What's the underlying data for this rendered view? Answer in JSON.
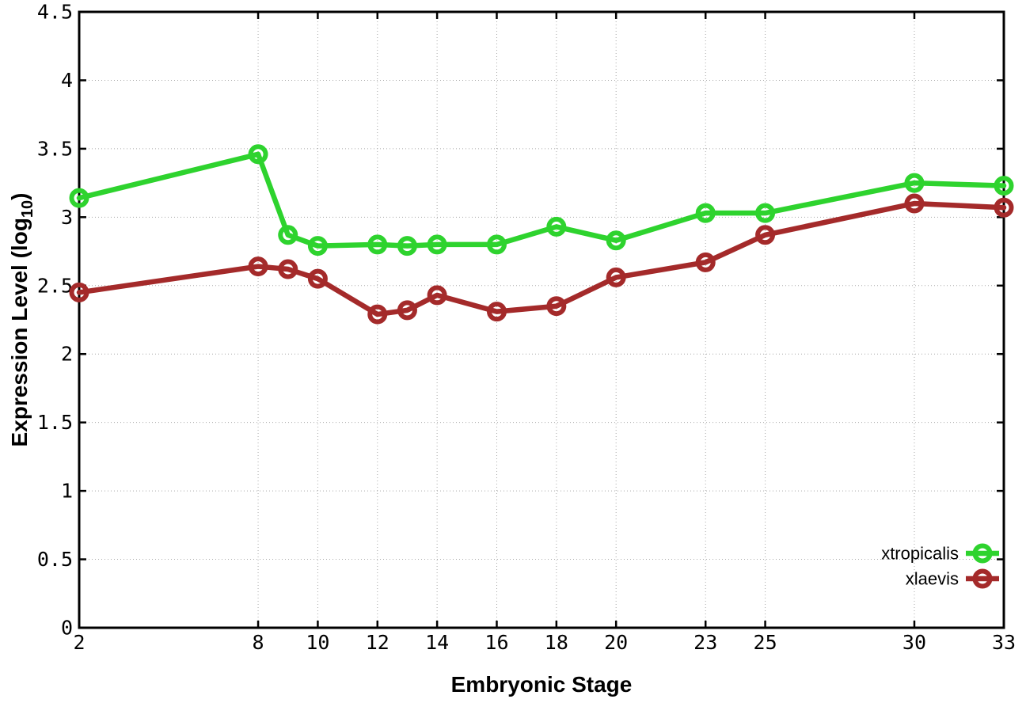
{
  "figure": {
    "background_color": "#ffffff",
    "axis_color": "#000000",
    "grid_color": "#a8a8a8"
  },
  "chart_data": {
    "type": "line",
    "title": "",
    "xlabel": "Embryonic Stage",
    "ylabel_plain": "Expression Level (log10)",
    "ylabel_parts": [
      "Expression Level (log",
      "10",
      ")"
    ],
    "x": [
      2,
      8,
      9,
      10,
      12,
      13,
      14,
      16,
      18,
      20,
      23,
      25,
      30,
      33
    ],
    "xlim": [
      2,
      33
    ],
    "ylim": [
      0,
      4.5
    ],
    "xticks": {
      "values": [
        2,
        8,
        10,
        12,
        14,
        16,
        18,
        20,
        23,
        25,
        30,
        33
      ],
      "labels": [
        "2",
        "8",
        "10",
        "12",
        "14",
        "16",
        "18",
        "20",
        "23",
        "25",
        "30",
        "33"
      ]
    },
    "yticks": {
      "values": [
        0,
        0.5,
        1,
        1.5,
        2,
        2.5,
        3,
        3.5,
        4,
        4.5
      ],
      "labels": [
        "0",
        "0.5",
        "1",
        "1.5",
        "2",
        "2.5",
        "3",
        "3.5",
        "4",
        "4.5"
      ]
    },
    "grid": true,
    "legend_position": "bottom-right",
    "series": [
      {
        "name": "xtropicalis",
        "color": "#2ed32e",
        "marker": "open-circle",
        "values": [
          3.14,
          3.46,
          2.87,
          2.79,
          2.8,
          2.79,
          2.8,
          2.8,
          2.93,
          2.83,
          3.03,
          3.03,
          3.25,
          3.23
        ]
      },
      {
        "name": "xlaevis",
        "color": "#a42a2a",
        "marker": "open-circle",
        "values": [
          2.45,
          2.64,
          2.62,
          2.55,
          2.29,
          2.32,
          2.43,
          2.31,
          2.35,
          2.56,
          2.67,
          2.87,
          3.1,
          3.07
        ]
      }
    ]
  }
}
